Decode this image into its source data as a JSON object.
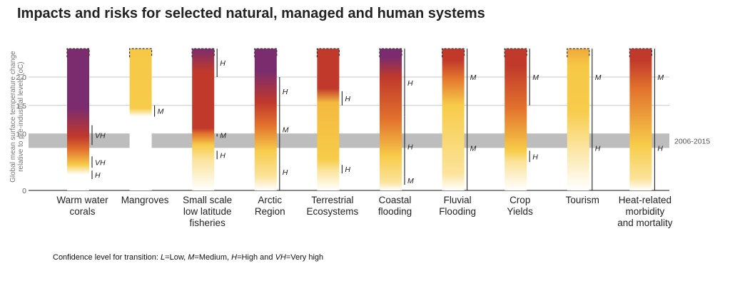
{
  "chart_data": {
    "type": "bar",
    "title": "Impacts and risks for selected natural, managed and human systems",
    "ylabel": "Global mean surface temperature change relative to pre-industrial levels (oC)",
    "ylim": [
      0,
      2.5
    ],
    "yticks": [
      {
        "value": 0,
        "label": "0"
      },
      {
        "value": 1.0,
        "label": "1.0"
      },
      {
        "value": 1.5,
        "label": "1.5"
      },
      {
        "value": 2.0,
        "label": "2.0"
      }
    ],
    "reference_band": {
      "label": "2006-2015",
      "from": 0.75,
      "to": 1.0
    },
    "risk_colors": {
      "undetectable": "#ffffff",
      "moderate": "#f7cc4a",
      "high": "#c0392b",
      "very_high": "#7b2c6e"
    },
    "systems": [
      {
        "label": [
          "Warm water",
          "corals"
        ],
        "stops": [
          [
            0,
            "#ffffff"
          ],
          [
            0.28,
            "#ffffff"
          ],
          [
            0.45,
            "#f7cc4a"
          ],
          [
            0.72,
            "#e2722d"
          ],
          [
            0.95,
            "#c0392b"
          ],
          [
            1.45,
            "#7b2c6e"
          ],
          [
            2.5,
            "#7b2c6e"
          ]
        ],
        "transitions": [
          {
            "from": 0.2,
            "to": 0.35,
            "label": "H"
          },
          {
            "from": 0.4,
            "to": 0.6,
            "label": "VH"
          },
          {
            "from": 0.8,
            "to": 1.15,
            "label": "VH"
          }
        ]
      },
      {
        "label": [
          "Mangroves"
        ],
        "stops": [
          [
            0,
            "#ffffff"
          ],
          [
            1.3,
            "#ffffff"
          ],
          [
            1.45,
            "#f7cc4a"
          ],
          [
            2.5,
            "#f6c846"
          ]
        ],
        "transitions": [
          {
            "from": 1.3,
            "to": 1.5,
            "label": "M"
          }
        ]
      },
      {
        "label": [
          "Small scale",
          "low latitude",
          "fisheries"
        ],
        "stops": [
          [
            0,
            "#ffffff"
          ],
          [
            0.55,
            "#fbe39a"
          ],
          [
            0.8,
            "#f7cc4a"
          ],
          [
            1.0,
            "#e2722d"
          ],
          [
            1.1,
            "#c0392b"
          ],
          [
            2.1,
            "#c0392b"
          ],
          [
            2.5,
            "#7b2c6e"
          ]
        ],
        "transitions": [
          {
            "from": 0.55,
            "to": 0.7,
            "label": "H"
          },
          {
            "from": 0.95,
            "to": 1.0,
            "label": "M"
          },
          {
            "from": 2.0,
            "to": 2.5,
            "label": "H"
          }
        ]
      },
      {
        "label": [
          "Arctic",
          "Region"
        ],
        "stops": [
          [
            0,
            "#ffffff"
          ],
          [
            0.25,
            "#fbe39a"
          ],
          [
            0.7,
            "#f7cc4a"
          ],
          [
            1.15,
            "#e2722d"
          ],
          [
            1.55,
            "#c0392b"
          ],
          [
            2.1,
            "#7b2c6e"
          ],
          [
            2.5,
            "#7b2c6e"
          ]
        ],
        "transitions": [
          {
            "from": 0,
            "to": 0.65,
            "label": "H"
          },
          {
            "from": 0.65,
            "to": 1.5,
            "label": "M"
          },
          {
            "from": 1.5,
            "to": 2.0,
            "label": "H"
          }
        ]
      },
      {
        "label": [
          "Terrestrial",
          "Ecosystems"
        ],
        "stops": [
          [
            0,
            "#ffffff"
          ],
          [
            0.35,
            "#fbe39a"
          ],
          [
            0.55,
            "#f7cc4a"
          ],
          [
            1.55,
            "#f4b93f"
          ],
          [
            1.8,
            "#c0392b"
          ],
          [
            2.5,
            "#c0392b"
          ]
        ],
        "transitions": [
          {
            "from": 0.3,
            "to": 0.45,
            "label": "H"
          },
          {
            "from": 1.5,
            "to": 1.75,
            "label": "H"
          }
        ]
      },
      {
        "label": [
          "Coastal",
          "flooding"
        ],
        "stops": [
          [
            0,
            "#ffffff"
          ],
          [
            0.15,
            "#fbe39a"
          ],
          [
            0.6,
            "#f7cc4a"
          ],
          [
            1.25,
            "#e2722d"
          ],
          [
            2.0,
            "#c0392b"
          ],
          [
            2.35,
            "#7b2c6e"
          ],
          [
            2.5,
            "#7b2c6e"
          ]
        ],
        "transitions": [
          {
            "from": 0.1,
            "to": 0.25,
            "label": "M"
          },
          {
            "from": 0.25,
            "to": 1.3,
            "label": "H"
          },
          {
            "from": 1.3,
            "to": 2.5,
            "label": "H"
          }
        ]
      },
      {
        "label": [
          "Fluvial",
          "Flooding"
        ],
        "stops": [
          [
            0,
            "#ffffff"
          ],
          [
            0.3,
            "#fbe39a"
          ],
          [
            1.5,
            "#f7cc4a"
          ],
          [
            2.0,
            "#e2722d"
          ],
          [
            2.3,
            "#c0392b"
          ],
          [
            2.5,
            "#c0392b"
          ]
        ],
        "transitions": [
          {
            "from": 0,
            "to": 1.5,
            "label": "M"
          },
          {
            "from": 1.5,
            "to": 2.5,
            "label": "M"
          }
        ]
      },
      {
        "label": [
          "Crop",
          "Yields"
        ],
        "stops": [
          [
            0,
            "#ffffff"
          ],
          [
            0.5,
            "#fbe39a"
          ],
          [
            0.7,
            "#f7cc4a"
          ],
          [
            1.45,
            "#e2722d"
          ],
          [
            2.2,
            "#c0392b"
          ],
          [
            2.5,
            "#c0392b"
          ]
        ],
        "transitions": [
          {
            "from": 0.5,
            "to": 0.7,
            "label": "H"
          },
          {
            "from": 1.5,
            "to": 2.5,
            "label": "M"
          }
        ]
      },
      {
        "label": [
          "Tourism"
        ],
        "stops": [
          [
            0,
            "#ffffff"
          ],
          [
            0.8,
            "#fbe39a"
          ],
          [
            1.4,
            "#f7cc4a"
          ],
          [
            2.2,
            "#f6c846"
          ],
          [
            2.5,
            "#f0a93a"
          ]
        ],
        "transitions": [
          {
            "from": 0,
            "to": 1.5,
            "label": "H"
          },
          {
            "from": 1.5,
            "to": 2.5,
            "label": "M"
          }
        ]
      },
      {
        "label": [
          "Heat-related",
          "morbidity",
          "and mortality"
        ],
        "stops": [
          [
            0,
            "#ffffff"
          ],
          [
            0.2,
            "#fbe39a"
          ],
          [
            0.8,
            "#f7cc4a"
          ],
          [
            1.8,
            "#e2722d"
          ],
          [
            2.3,
            "#c0392b"
          ],
          [
            2.5,
            "#c0392b"
          ]
        ],
        "transitions": [
          {
            "from": 0,
            "to": 1.5,
            "label": "H"
          },
          {
            "from": 1.5,
            "to": 2.5,
            "label": "M"
          }
        ]
      }
    ]
  },
  "footnote": {
    "prefix": "Confidence level  for transition: ",
    "items": [
      {
        "key": "L",
        "text": "=Low, "
      },
      {
        "key": "M",
        "text": "=Medium, "
      },
      {
        "key": "H",
        "text": "=High and "
      },
      {
        "key": "VH",
        "text": "=Very high"
      }
    ]
  }
}
